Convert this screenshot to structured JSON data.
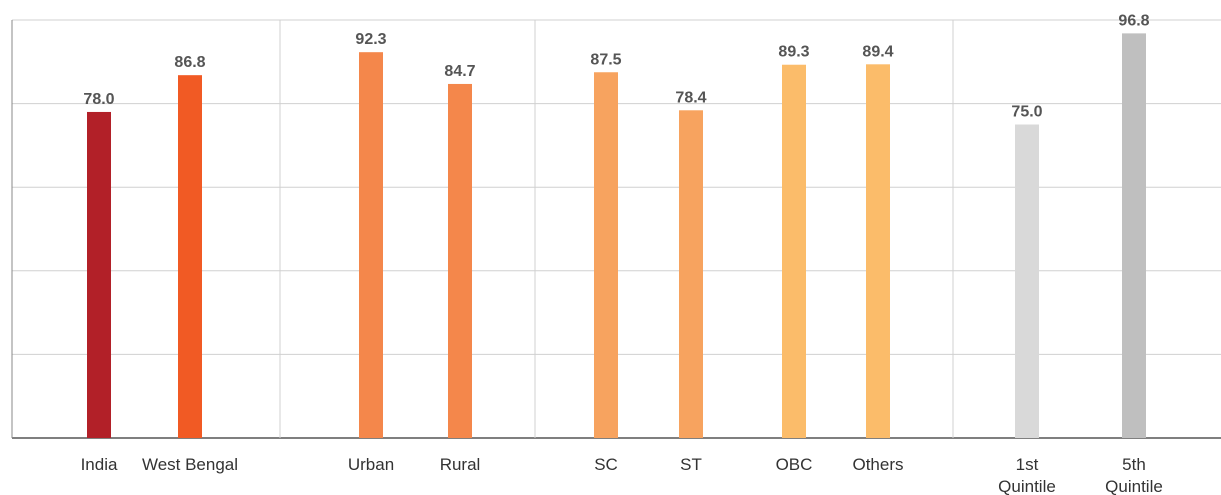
{
  "chart_data": {
    "type": "bar",
    "categories": [
      "India",
      "West Bengal",
      "Urban",
      "Rural",
      "SC",
      "ST",
      "OBC",
      "Others",
      "1st Quintile",
      "5th Quintile"
    ],
    "values": [
      78.0,
      86.8,
      92.3,
      84.7,
      87.5,
      78.4,
      89.3,
      89.4,
      75.0,
      96.8
    ],
    "value_labels": [
      "78.0",
      "86.8",
      "92.3",
      "84.7",
      "87.5",
      "78.4",
      "89.3",
      "89.4",
      "75.0",
      "96.8"
    ],
    "colors": [
      "#b22028",
      "#f15a24",
      "#f4874b",
      "#f4874b",
      "#f7a35f",
      "#f7a35f",
      "#fbbc6a",
      "#fbbc6a",
      "#d9d9d9",
      "#bfbfbf"
    ],
    "ylim": [
      0,
      100
    ],
    "yticks": [
      0,
      20,
      40,
      60,
      80,
      100
    ],
    "grid": true
  }
}
